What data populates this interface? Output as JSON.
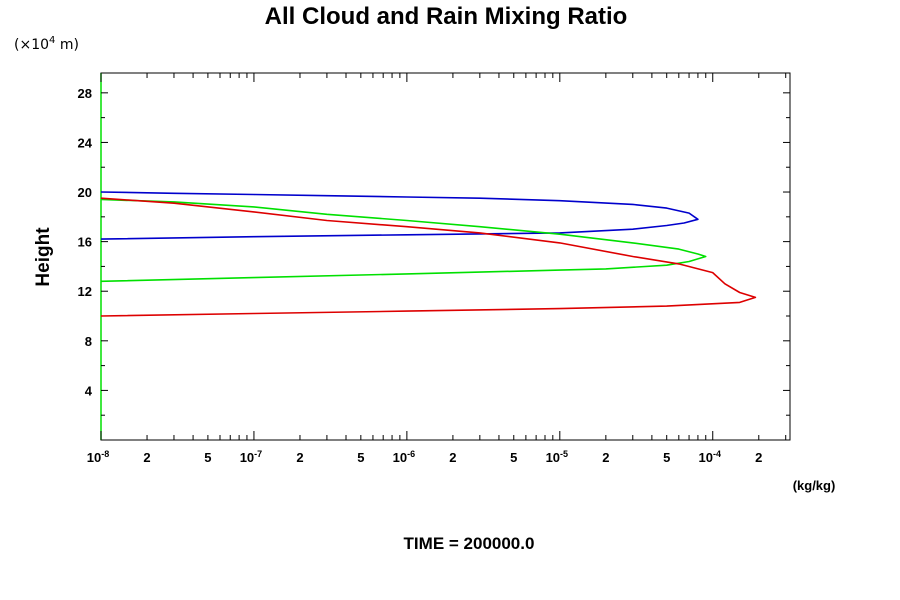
{
  "chart_data": {
    "type": "line",
    "title": "All Cloud and Rain Mixing Ratio",
    "y_scale_note": {
      "prefix": "(×10",
      "exponent": "4",
      "suffix": " m)"
    },
    "ylabel": "Height",
    "xunit": "(kg/kg)",
    "footer": "TIME = 200000.0",
    "xscale": "log",
    "xlim": [
      1e-08,
      0.00032
    ],
    "ylim": [
      0,
      29.6
    ],
    "grid": false,
    "y_ticks": [
      {
        "value": 4,
        "label": "4"
      },
      {
        "value": 8,
        "label": "8"
      },
      {
        "value": 12,
        "label": "12"
      },
      {
        "value": 16,
        "label": "16"
      },
      {
        "value": 20,
        "label": "20"
      },
      {
        "value": 24,
        "label": "24"
      },
      {
        "value": 28,
        "label": "28"
      }
    ],
    "x_ticks": [
      {
        "value": 1e-08,
        "base": "10",
        "exp": "-8"
      },
      {
        "value": 2e-08,
        "label": "2"
      },
      {
        "value": 5e-08,
        "label": "5"
      },
      {
        "value": 1e-07,
        "base": "10",
        "exp": "-7"
      },
      {
        "value": 2e-07,
        "label": "2"
      },
      {
        "value": 5e-07,
        "label": "5"
      },
      {
        "value": 1e-06,
        "base": "10",
        "exp": "-6"
      },
      {
        "value": 2e-06,
        "label": "2"
      },
      {
        "value": 5e-06,
        "label": "5"
      },
      {
        "value": 1e-05,
        "base": "10",
        "exp": "-5"
      },
      {
        "value": 2e-05,
        "label": "2"
      },
      {
        "value": 5e-05,
        "label": "5"
      },
      {
        "value": 0.0001,
        "base": "10",
        "exp": "-4"
      },
      {
        "value": 0.0002,
        "label": "2"
      }
    ],
    "series": [
      {
        "color": "#0000cc",
        "points": [
          [
            1e-08,
            20.0
          ],
          [
            3e-08,
            19.9
          ],
          [
            1e-07,
            19.8
          ],
          [
            3e-07,
            19.7
          ],
          [
            1e-06,
            19.6
          ],
          [
            3e-06,
            19.5
          ],
          [
            1e-05,
            19.3
          ],
          [
            3e-05,
            19.0
          ],
          [
            5e-05,
            18.7
          ],
          [
            7e-05,
            18.3
          ],
          [
            8e-05,
            17.8
          ],
          [
            6.5e-05,
            17.5
          ],
          [
            5e-05,
            17.3
          ],
          [
            3e-05,
            17.0
          ],
          [
            1e-05,
            16.7
          ],
          [
            1e-06,
            16.55
          ],
          [
            1e-07,
            16.4
          ],
          [
            1e-08,
            16.2
          ]
        ]
      },
      {
        "color": "#00e000",
        "points": [
          [
            1e-08,
            19.4
          ],
          [
            3e-08,
            19.2
          ],
          [
            1e-07,
            18.8
          ],
          [
            3e-07,
            18.2
          ],
          [
            1e-06,
            17.7
          ],
          [
            3e-06,
            17.2
          ],
          [
            1e-05,
            16.6
          ],
          [
            3e-05,
            15.9
          ],
          [
            6e-05,
            15.4
          ],
          [
            8e-05,
            15.0
          ],
          [
            9e-05,
            14.8
          ],
          [
            7e-05,
            14.4
          ],
          [
            5e-05,
            14.1
          ],
          [
            2e-05,
            13.8
          ],
          [
            1e-05,
            13.7
          ],
          [
            1e-06,
            13.4
          ],
          [
            1e-07,
            13.1
          ],
          [
            1e-08,
            12.8
          ]
        ]
      },
      {
        "color": "#dd0000",
        "points": [
          [
            1e-08,
            19.5
          ],
          [
            3e-08,
            19.1
          ],
          [
            1e-07,
            18.4
          ],
          [
            3e-07,
            17.7
          ],
          [
            1e-06,
            17.2
          ],
          [
            3e-06,
            16.7
          ],
          [
            1e-05,
            15.9
          ],
          [
            3e-05,
            14.8
          ],
          [
            6e-05,
            14.2
          ],
          [
            0.0001,
            13.5
          ],
          [
            0.00012,
            12.6
          ],
          [
            0.00015,
            11.9
          ],
          [
            0.00019,
            11.5
          ],
          [
            0.00015,
            11.1
          ],
          [
            5e-05,
            10.8
          ],
          [
            1e-05,
            10.6
          ],
          [
            1e-06,
            10.4
          ],
          [
            1e-07,
            10.2
          ],
          [
            1e-08,
            10.0
          ]
        ]
      }
    ]
  }
}
